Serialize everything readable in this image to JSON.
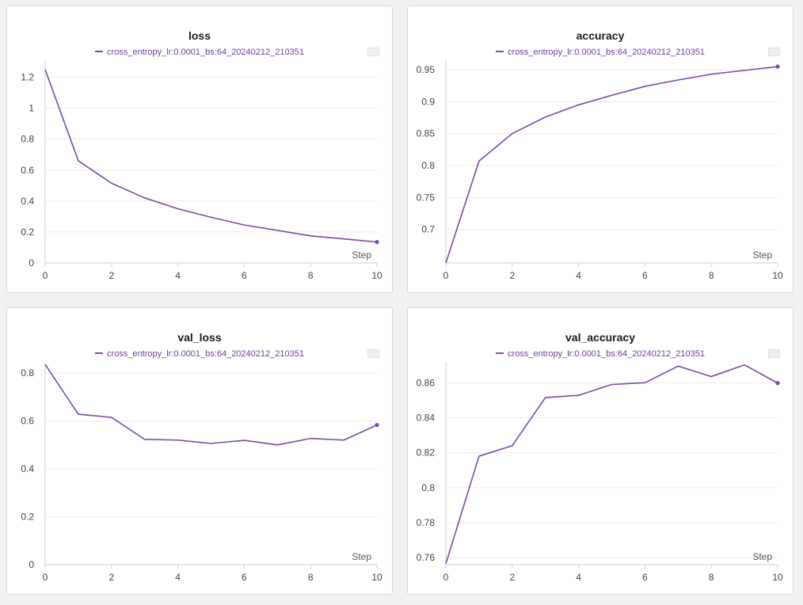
{
  "colors": {
    "series": "#7b4aa8",
    "grid": "#ececec",
    "axis": "#cfcfcf"
  },
  "chart_data": [
    {
      "type": "line",
      "title": "loss",
      "xlabel": "Step",
      "x": [
        0,
        1,
        2,
        3,
        4,
        5,
        6,
        7,
        8,
        9,
        10
      ],
      "series": [
        {
          "name": "cross_entropy_lr:0.0001_bs:64_20240212_210351",
          "values": [
            1.25,
            0.66,
            0.515,
            0.42,
            0.35,
            0.295,
            0.245,
            0.21,
            0.175,
            0.155,
            0.135
          ]
        }
      ],
      "xlim": [
        0,
        10
      ],
      "ylim": [
        0,
        1.3
      ],
      "xticks": [
        0,
        2,
        4,
        6,
        8,
        10
      ],
      "xtick_labels": [
        "0",
        "2",
        "4",
        "6",
        "8",
        "10"
      ],
      "yticks": [
        0,
        0.2,
        0.4,
        0.6,
        0.8,
        1,
        1.2
      ],
      "ytick_labels": [
        "0",
        "0.2",
        "0.4",
        "0.6",
        "0.8",
        "1",
        "1.2"
      ],
      "grid": true,
      "legend": "top-center"
    },
    {
      "type": "line",
      "title": "accuracy",
      "xlabel": "Step",
      "x": [
        0,
        1,
        2,
        3,
        4,
        5,
        6,
        7,
        8,
        9,
        10
      ],
      "series": [
        {
          "name": "cross_entropy_lr:0.0001_bs:64_20240212_210351",
          "values": [
            0.6475,
            0.807,
            0.85,
            0.876,
            0.895,
            0.91,
            0.924,
            0.934,
            0.943,
            0.949,
            0.955
          ]
        }
      ],
      "xlim": [
        0,
        10
      ],
      "ylim": [
        0.6475,
        0.9625
      ],
      "xticks": [
        0,
        2,
        4,
        6,
        8,
        10
      ],
      "xtick_labels": [
        "0",
        "2",
        "4",
        "6",
        "8",
        "10"
      ],
      "yticks": [
        0.7,
        0.75,
        0.8,
        0.85,
        0.9,
        0.95
      ],
      "ytick_labels": [
        "0.7",
        "0.75",
        "0.8",
        "0.85",
        "0.9",
        "0.95"
      ],
      "grid": true,
      "legend": "top-center"
    },
    {
      "type": "line",
      "title": "val_loss",
      "xlabel": "Step",
      "x": [
        0,
        1,
        2,
        3,
        4,
        5,
        6,
        7,
        8,
        9,
        10
      ],
      "series": [
        {
          "name": "cross_entropy_lr:0.0001_bs:64_20240212_210351",
          "values": [
            0.836,
            0.628,
            0.615,
            0.523,
            0.52,
            0.506,
            0.519,
            0.5,
            0.527,
            0.52,
            0.583
          ]
        }
      ],
      "xlim": [
        0,
        10
      ],
      "ylim": [
        0,
        0.84
      ],
      "xticks": [
        0,
        2,
        4,
        6,
        8,
        10
      ],
      "xtick_labels": [
        "0",
        "2",
        "4",
        "6",
        "8",
        "10"
      ],
      "yticks": [
        0,
        0.2,
        0.4,
        0.6,
        0.8
      ],
      "ytick_labels": [
        "0",
        "0.2",
        "0.4",
        "0.6",
        "0.8"
      ],
      "grid": true,
      "legend": "top-center"
    },
    {
      "type": "line",
      "title": "val_accuracy",
      "xlabel": "Step",
      "x": [
        0,
        1,
        2,
        3,
        4,
        5,
        6,
        7,
        8,
        9,
        10
      ],
      "series": [
        {
          "name": "cross_entropy_lr:0.0001_bs:64_20240212_210351",
          "values": [
            0.7565,
            0.818,
            0.824,
            0.8515,
            0.8528,
            0.859,
            0.86,
            0.8695,
            0.8635,
            0.8702,
            0.8598
          ]
        }
      ],
      "xlim": [
        0,
        10
      ],
      "ylim": [
        0.756,
        0.871
      ],
      "xticks": [
        0,
        2,
        4,
        6,
        8,
        10
      ],
      "xtick_labels": [
        "0",
        "2",
        "4",
        "6",
        "8",
        "10"
      ],
      "yticks": [
        0.76,
        0.78,
        0.8,
        0.82,
        0.84,
        0.86
      ],
      "ytick_labels": [
        "0.76",
        "0.78",
        "0.8",
        "0.82",
        "0.84",
        "0.86"
      ],
      "grid": true,
      "legend": "top-center"
    }
  ]
}
